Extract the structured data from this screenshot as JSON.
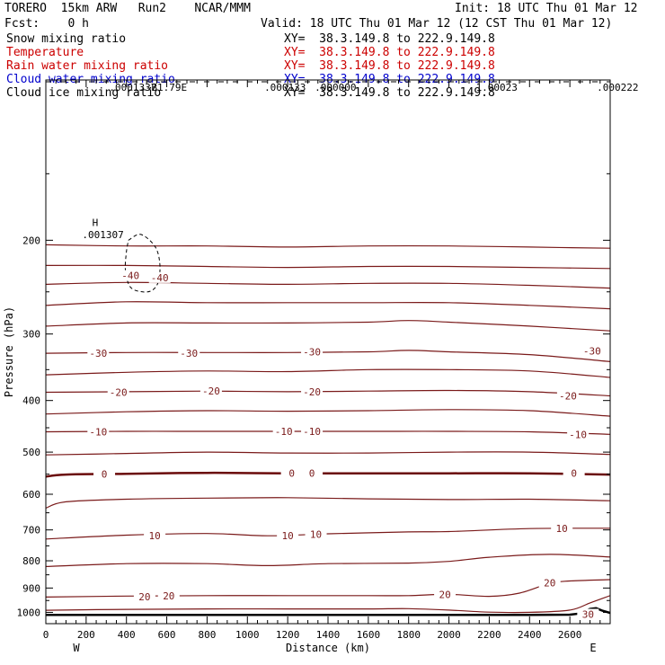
{
  "header": {
    "left_line1": "TORERO  15km ARW   Run2    NCAR/MMM",
    "left_line2": "Fcst:    0 h",
    "init": "Init: 18 UTC Thu 01 Mar 12",
    "valid": "Valid: 18 UTC Thu 01 Mar 12 (12 CST Thu 01 Mar 12)"
  },
  "fields": [
    {
      "name": "Snow mixing ratio",
      "xy": "XY=  38.3.149.8 to 222.9.149.8",
      "color": "#000000"
    },
    {
      "name": "Temperature",
      "xy": "XY=  38.3.149.8 to 222.9.149.8",
      "color": "#cc0000"
    },
    {
      "name": "Rain water mixing ratio",
      "xy": "XY=  38.3.149.8 to 222.9.149.8",
      "color": "#cc0000"
    },
    {
      "name": "Cloud water mixing ratio",
      "xy": "XY=  38.3.149.8 to 222.9.149.8",
      "color": "#0000cc"
    },
    {
      "name": "Cloud ice mixing ratio",
      "xy": "XY=  38.3.149.8 to 222.9.149.8",
      "color": "#000000"
    }
  ],
  "colors": {
    "temperature": "#7a1a1a",
    "zero_isotherm": "#6a0a0a",
    "ice": "#000000",
    "axis": "#000000"
  },
  "chart_data": {
    "type": "line",
    "xlabel": "Distance (km)",
    "ylabel": "Pressure (hPa)",
    "xlim": [
      0,
      2800
    ],
    "ylim": [
      1050,
      100
    ],
    "yscale": "log",
    "x_ticks": [
      0,
      200,
      400,
      600,
      800,
      1000,
      1200,
      1400,
      1600,
      1800,
      2000,
      2200,
      2400,
      2600
    ],
    "y_ticks": [
      200,
      300,
      400,
      500,
      600,
      700,
      800,
      900,
      1000
    ],
    "x_end_labels": {
      "left": "W",
      "right": "E"
    },
    "contour_labels": [
      {
        "text": "-40",
        "x": 420,
        "p": 233
      },
      {
        "text": "-40",
        "x": 565,
        "p": 235
      },
      {
        "text": "-30",
        "x": 260,
        "p": 326
      },
      {
        "text": "-30",
        "x": 710,
        "p": 326
      },
      {
        "text": "-30",
        "x": 1320,
        "p": 324
      },
      {
        "text": "-30",
        "x": 2710,
        "p": 323
      },
      {
        "text": "-20",
        "x": 360,
        "p": 386
      },
      {
        "text": "-20",
        "x": 820,
        "p": 384
      },
      {
        "text": "-20",
        "x": 1320,
        "p": 385
      },
      {
        "text": "-20",
        "x": 2590,
        "p": 392
      },
      {
        "text": "-10",
        "x": 260,
        "p": 458
      },
      {
        "text": "-10",
        "x": 1180,
        "p": 457
      },
      {
        "text": "-10",
        "x": 1320,
        "p": 457
      },
      {
        "text": "-10",
        "x": 2640,
        "p": 463
      },
      {
        "text": "0",
        "x": 290,
        "p": 550
      },
      {
        "text": "0",
        "x": 1220,
        "p": 548
      },
      {
        "text": "0",
        "x": 1320,
        "p": 548
      },
      {
        "text": "0",
        "x": 2620,
        "p": 548
      },
      {
        "text": "10",
        "x": 540,
        "p": 718
      },
      {
        "text": "10",
        "x": 1200,
        "p": 718
      },
      {
        "text": "10",
        "x": 1340,
        "p": 713
      },
      {
        "text": "10",
        "x": 2560,
        "p": 695
      },
      {
        "text": "20",
        "x": 490,
        "p": 935
      },
      {
        "text": "20",
        "x": 610,
        "p": 930
      },
      {
        "text": "20",
        "x": 1980,
        "p": 925
      },
      {
        "text": "20",
        "x": 2500,
        "p": 880
      },
      {
        "text": "30",
        "x": 2690,
        "p": 1008
      }
    ],
    "isotherms": [
      {
        "name": "-40",
        "x": [
          0,
          400,
          800,
          1200,
          1600,
          2000,
          2400,
          2800
        ],
        "p": [
          204,
          205,
          205,
          206,
          205,
          205,
          206,
          207
        ]
      },
      {
        "name": "-40",
        "x": [
          0,
          400,
          800,
          1200,
          1600,
          2000,
          2400,
          2800
        ],
        "p": [
          223,
          223,
          224,
          225,
          224,
          224,
          225,
          226
        ]
      },
      {
        "name": "-40",
        "x": [
          0,
          400,
          800,
          1200,
          1600,
          2000,
          2400,
          2800
        ],
        "p": [
          242,
          240,
          241,
          242,
          241,
          241,
          243,
          246
        ]
      },
      {
        "name": "-40",
        "x": [
          0,
          400,
          800,
          1200,
          1600,
          2000,
          2400,
          2800
        ],
        "p": [
          265,
          261,
          262,
          262,
          262,
          262,
          265,
          269
        ]
      },
      {
        "name": "-30",
        "x": [
          0,
          400,
          800,
          1200,
          1600,
          1800,
          2000,
          2400,
          2800
        ],
        "p": [
          290,
          286,
          286,
          286,
          285,
          283,
          285,
          290,
          296
        ]
      },
      {
        "name": "-30",
        "x": [
          0,
          400,
          800,
          1200,
          1600,
          1800,
          2000,
          2400,
          2800
        ],
        "p": [
          326,
          325,
          325,
          325,
          324,
          322,
          324,
          328,
          338
        ]
      },
      {
        "name": "-20",
        "x": [
          0,
          400,
          800,
          1200,
          1600,
          2000,
          2400,
          2800
        ],
        "p": [
          358,
          354,
          352,
          353,
          350,
          350,
          352,
          362
        ]
      },
      {
        "name": "-20",
        "x": [
          0,
          400,
          800,
          1200,
          1600,
          2000,
          2400,
          2800
        ],
        "p": [
          386,
          385,
          384,
          385,
          384,
          383,
          385,
          392
        ]
      },
      {
        "name": "-20",
        "x": [
          0,
          400,
          800,
          1200,
          1600,
          2000,
          2400,
          2800
        ],
        "p": [
          424,
          420,
          418,
          419,
          418,
          416,
          418,
          428
        ]
      },
      {
        "name": "-10",
        "x": [
          0,
          400,
          800,
          1200,
          1600,
          2000,
          2400,
          2800
        ],
        "p": [
          458,
          457,
          457,
          457,
          457,
          457,
          458,
          463
        ]
      },
      {
        "name": "-10",
        "x": [
          0,
          400,
          800,
          1200,
          1600,
          2000,
          2400,
          2800
        ],
        "p": [
          506,
          503,
          500,
          502,
          502,
          500,
          500,
          505
        ]
      },
      {
        "name": "0",
        "x": [
          0,
          100,
          400,
          800,
          1200,
          1600,
          2000,
          2400,
          2800
        ],
        "p": [
          556,
          551,
          549,
          547,
          548,
          548,
          548,
          548,
          551
        ]
      },
      {
        "name": "0",
        "x": [
          0,
          100,
          400,
          800,
          1200,
          1600,
          2000,
          2400,
          2800
        ],
        "p": [
          637,
          620,
          613,
          610,
          609,
          612,
          614,
          613,
          617
        ]
      },
      {
        "name": "10",
        "x": [
          0,
          400,
          800,
          1100,
          1400,
          1800,
          2000,
          2400,
          2800
        ],
        "p": [
          728,
          716,
          711,
          718,
          712,
          706,
          705,
          696,
          695
        ]
      },
      {
        "name": "10",
        "x": [
          0,
          400,
          800,
          1100,
          1400,
          1800,
          2000,
          2200,
          2500,
          2800
        ],
        "p": [
          820,
          810,
          810,
          817,
          810,
          808,
          802,
          788,
          778,
          787
        ]
      },
      {
        "name": "20",
        "x": [
          0,
          400,
          800,
          1200,
          1600,
          1800,
          2000,
          2200,
          2350,
          2500,
          2600,
          2800
        ],
        "p": [
          936,
          932,
          930,
          930,
          930,
          930,
          925,
          933,
          920,
          882,
          873,
          868
        ]
      },
      {
        "name": "20",
        "x": [
          0,
          400,
          800,
          1200,
          1600,
          1800,
          2000,
          2200,
          2400,
          2600,
          2700,
          2800
        ],
        "p": [
          991,
          987,
          985,
          985,
          985,
          984,
          990,
          999,
          1000,
          990,
          960,
          930
        ]
      }
    ],
    "ice_contour": {
      "label_h": "H",
      "label_value": ".001307",
      "value_labels": [
        ".0001337",
        "-B1.79E",
        ".000133",
        ".000000",
        "1.00023",
        ".000222"
      ],
      "x": [
        410,
        470,
        540,
        565,
        560,
        530,
        480,
        420,
        395,
        400,
        410
      ],
      "p": [
        200,
        195,
        205,
        220,
        238,
        248,
        250,
        245,
        228,
        210,
        200
      ]
    },
    "terrain": {
      "x": [
        0,
        400,
        800,
        1200,
        1600,
        2000,
        2400,
        2600,
        2650,
        2700,
        2730,
        2760,
        2800
      ],
      "p": [
        1011,
        1011,
        1011,
        1011,
        1011,
        1011,
        1011,
        1010,
        1005,
        985,
        982,
        992,
        1002
      ]
    }
  }
}
